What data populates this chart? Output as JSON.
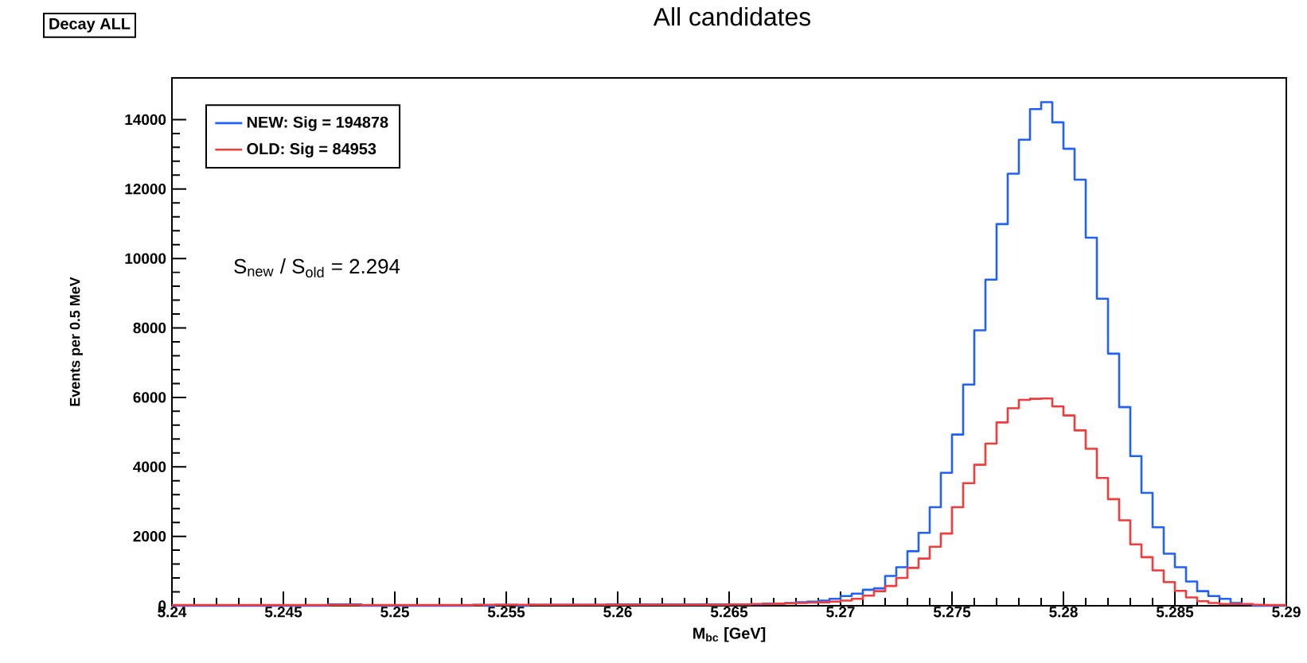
{
  "chart_data": {
    "type": "histogram",
    "title": "All candidates",
    "xlabel": "M$_{bc}$ [GeV]",
    "ylabel": "Events per 0.5 MeV",
    "annotations": [
      "Decay ALL",
      "S$_{new}$ / S$_{old}$ = 2.294"
    ],
    "bins": [
      5.24,
      5.2405,
      5.241,
      5.2415,
      5.242,
      5.2425,
      5.243,
      5.2435,
      5.244,
      5.2445,
      5.245,
      5.2455,
      5.246,
      5.2465,
      5.247,
      5.2475,
      5.248,
      5.2485,
      5.249,
      5.2495,
      5.25,
      5.2505,
      5.251,
      5.2515,
      5.252,
      5.2525,
      5.253,
      5.2535,
      5.254,
      5.2545,
      5.255,
      5.2555,
      5.256,
      5.2565,
      5.257,
      5.2575,
      5.258,
      5.2585,
      5.259,
      5.2595,
      5.26,
      5.2605,
      5.261,
      5.2615,
      5.262,
      5.2625,
      5.263,
      5.2635,
      5.264,
      5.2645,
      5.265,
      5.2655,
      5.266,
      5.2665,
      5.267,
      5.2675,
      5.268,
      5.2685,
      5.269,
      5.2695,
      5.27,
      5.2705,
      5.271,
      5.2715,
      5.272,
      5.2725,
      5.273,
      5.2735,
      5.274,
      5.2745,
      5.275,
      5.2755,
      5.276,
      5.2765,
      5.277,
      5.2775,
      5.278,
      5.2785,
      5.279,
      5.2795,
      5.28,
      5.2805,
      5.281,
      5.2815,
      5.282,
      5.2825,
      5.283,
      5.2835,
      5.284,
      5.2845,
      5.285,
      5.2855,
      5.286,
      5.2865,
      5.287,
      5.2875,
      5.288,
      5.2885,
      5.289,
      5.2895,
      5.29
    ],
    "series": [
      {
        "name": "NEW: Sig = 194878",
        "color": "#2060ff",
        "values": [
          0,
          0,
          0,
          0,
          0,
          0,
          0,
          0,
          0,
          0,
          0,
          0,
          0,
          0,
          40,
          40,
          40,
          0,
          0,
          0,
          0,
          0,
          0,
          0,
          0,
          0,
          0,
          30,
          0,
          30,
          30,
          0,
          30,
          30,
          30,
          30,
          30,
          30,
          30,
          40,
          40,
          40,
          40,
          40,
          40,
          40,
          40,
          40,
          40,
          40,
          40,
          40,
          40,
          60,
          60,
          80,
          100,
          120,
          150,
          200,
          280,
          350,
          460,
          500,
          860,
          1110,
          1570,
          2100,
          2840,
          3830,
          4930,
          6370,
          7930,
          9390,
          10990,
          12440,
          13420,
          14300,
          14500,
          13920,
          13160,
          12270,
          10600,
          8840,
          7260,
          5720,
          4310,
          3250,
          2260,
          1500,
          1110,
          700,
          420,
          280,
          200,
          80,
          40,
          0,
          0,
          0
        ]
      },
      {
        "name": "OLD: Sig = 84953",
        "color": "#f03c3c",
        "values": [
          20,
          20,
          20,
          20,
          20,
          20,
          20,
          20,
          20,
          20,
          20,
          20,
          20,
          20,
          20,
          20,
          20,
          20,
          20,
          20,
          20,
          20,
          20,
          20,
          20,
          20,
          20,
          20,
          30,
          30,
          30,
          30,
          30,
          30,
          30,
          30,
          30,
          30,
          30,
          30,
          30,
          30,
          30,
          30,
          30,
          30,
          30,
          30,
          30,
          30,
          40,
          40,
          50,
          50,
          60,
          70,
          80,
          90,
          100,
          120,
          150,
          200,
          290,
          420,
          570,
          800,
          1090,
          1360,
          1700,
          2080,
          2840,
          3530,
          4060,
          4670,
          5280,
          5690,
          5930,
          5960,
          5970,
          5740,
          5480,
          5050,
          4520,
          3680,
          3070,
          2460,
          1770,
          1400,
          1020,
          680,
          430,
          240,
          130,
          80,
          50,
          50,
          50,
          30,
          20,
          20
        ]
      }
    ],
    "xlim": [
      5.24,
      5.29
    ],
    "ylim": [
      0,
      15200
    ],
    "xticks": [
      5.24,
      5.245,
      5.25,
      5.255,
      5.26,
      5.265,
      5.27,
      5.275,
      5.28,
      5.285,
      5.29
    ],
    "yticks": [
      0,
      2000,
      4000,
      6000,
      8000,
      10000,
      12000,
      14000
    ],
    "legend": "top left"
  }
}
